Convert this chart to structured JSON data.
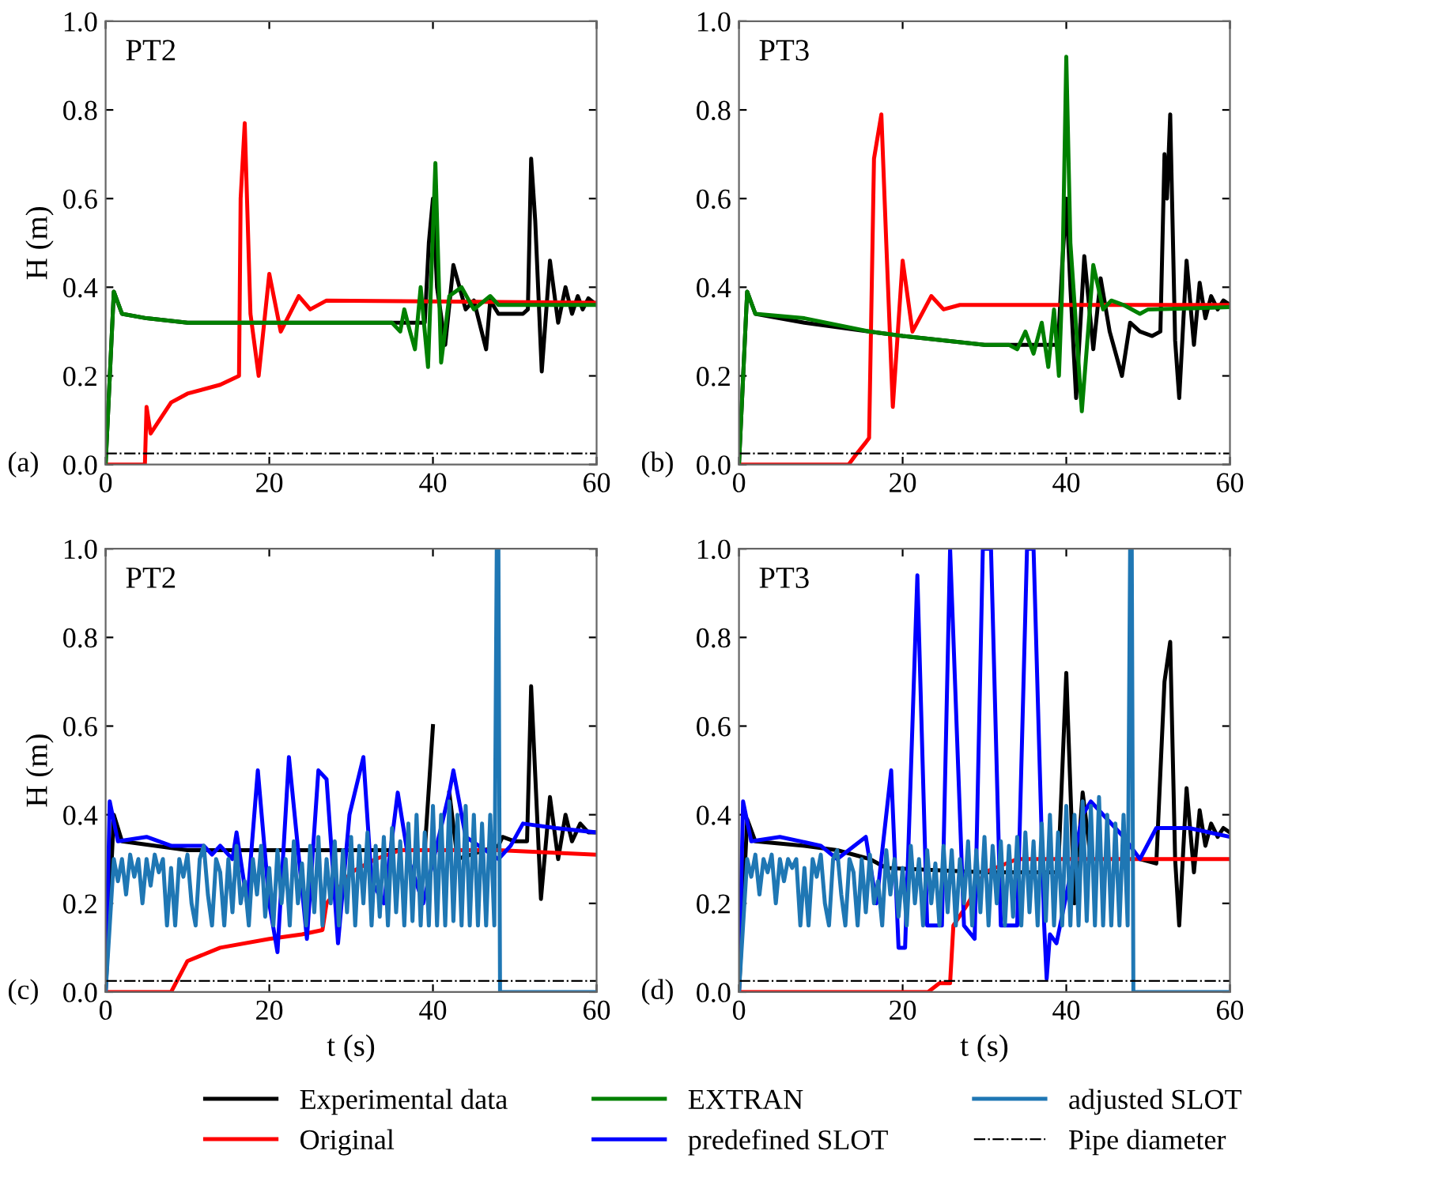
{
  "chart_data": [
    {
      "type": "line",
      "title": "PT2",
      "ylabel": "H (m)",
      "annotations": [
        "(a)"
      ],
      "xlim": [
        0,
        60
      ],
      "xticks": [
        0,
        20,
        40,
        60
      ],
      "ylim": [
        0,
        1
      ],
      "yticks": [
        {
          "value": 0,
          "label": "0.0"
        },
        {
          "value": 0.2,
          "label": "0.2"
        },
        {
          "value": 0.4,
          "label": "0.4"
        },
        {
          "value": 0.6,
          "label": "0.6"
        },
        {
          "value": 0.8,
          "label": "0.8"
        },
        {
          "value": 1,
          "label": "1.0"
        }
      ],
      "grid": false,
      "legend": "bottom",
      "line_style": "solid",
      "marker": "none",
      "ref_lines": [
        {
          "axis": "y",
          "value": 0.025,
          "label": "Pipe diameter",
          "color": "#000000",
          "line_style": "dashdot"
        }
      ],
      "series": [
        {
          "name": "Experimental data",
          "color": "#000000",
          "x": [
            0,
            1,
            2,
            5,
            10,
            20,
            30,
            39,
            39.5,
            40,
            40.5,
            41.5,
            42.5,
            44,
            45,
            46.5,
            47,
            48,
            51,
            51.6,
            52,
            52.5,
            53.3,
            54.3,
            55.3,
            56.2,
            57,
            57.7,
            58.3,
            59,
            60
          ],
          "values": [
            0,
            0.39,
            0.34,
            0.33,
            0.32,
            0.32,
            0.32,
            0.32,
            0.5,
            0.6,
            0.4,
            0.27,
            0.45,
            0.35,
            0.37,
            0.26,
            0.37,
            0.34,
            0.34,
            0.35,
            0.69,
            0.55,
            0.21,
            0.46,
            0.32,
            0.4,
            0.34,
            0.38,
            0.35,
            0.375,
            0.36
          ]
        },
        {
          "name": "Original",
          "color": "#ff0000",
          "x": [
            0,
            4.8,
            5,
            5.5,
            8,
            10,
            14,
            16.3,
            16.5,
            17,
            17.7,
            18.7,
            20,
            21.4,
            23.6,
            25,
            27,
            60
          ],
          "values": [
            0,
            0,
            0.13,
            0.07,
            0.14,
            0.16,
            0.18,
            0.2,
            0.6,
            0.77,
            0.34,
            0.2,
            0.43,
            0.3,
            0.38,
            0.35,
            0.37,
            0.365
          ]
        },
        {
          "name": "EXTRAN",
          "color": "#008000",
          "x": [
            0,
            1,
            2,
            5,
            10,
            20,
            30,
            35,
            36,
            36.5,
            37.2,
            37.8,
            38.5,
            39.4,
            40.3,
            41,
            42,
            43.5,
            45,
            47,
            48,
            60
          ],
          "values": [
            0,
            0.39,
            0.34,
            0.33,
            0.32,
            0.32,
            0.32,
            0.32,
            0.3,
            0.35,
            0.3,
            0.26,
            0.4,
            0.22,
            0.68,
            0.23,
            0.38,
            0.4,
            0.35,
            0.38,
            0.36,
            0.36
          ]
        }
      ]
    },
    {
      "type": "line",
      "title": "PT3",
      "annotations": [
        "(b)"
      ],
      "xlim": [
        0,
        60
      ],
      "xticks": [
        0,
        20,
        40,
        60
      ],
      "ylim": [
        0,
        1
      ],
      "yticks": [
        {
          "value": 0,
          "label": "0.0"
        },
        {
          "value": 0.2,
          "label": "0.2"
        },
        {
          "value": 0.4,
          "label": "0.4"
        },
        {
          "value": 0.6,
          "label": "0.6"
        },
        {
          "value": 0.8,
          "label": "0.8"
        },
        {
          "value": 1,
          "label": "1.0"
        }
      ],
      "grid": false,
      "legend": "bottom",
      "line_style": "solid",
      "marker": "none",
      "ref_lines": [
        {
          "axis": "y",
          "value": 0.025,
          "color": "#000000",
          "line_style": "dashdot"
        }
      ],
      "series": [
        {
          "name": "Experimental data",
          "color": "#000000",
          "x": [
            0,
            1,
            2,
            8,
            16,
            20,
            30,
            39,
            39.5,
            40,
            40.5,
            41.2,
            42.2,
            43.3,
            44.2,
            45.3,
            46.8,
            47.8,
            49,
            50.5,
            51.5,
            52,
            52.3,
            52.7,
            53.3,
            53.8,
            54.7,
            55.6,
            56.3,
            57,
            57.7,
            58.5,
            59.2,
            60
          ],
          "values": [
            0,
            0.39,
            0.34,
            0.32,
            0.3,
            0.29,
            0.27,
            0.27,
            0.45,
            0.6,
            0.4,
            0.15,
            0.47,
            0.26,
            0.42,
            0.3,
            0.2,
            0.32,
            0.3,
            0.29,
            0.3,
            0.7,
            0.6,
            0.79,
            0.28,
            0.15,
            0.46,
            0.27,
            0.41,
            0.33,
            0.38,
            0.35,
            0.37,
            0.36
          ]
        },
        {
          "name": "Original",
          "color": "#ff0000",
          "x": [
            0,
            13.4,
            14.2,
            15.5,
            15.9,
            16.5,
            17.4,
            18,
            18.8,
            20,
            21.2,
            23.5,
            25,
            27,
            60
          ],
          "values": [
            0,
            0,
            0.02,
            0.05,
            0.06,
            0.69,
            0.79,
            0.5,
            0.13,
            0.46,
            0.3,
            0.38,
            0.35,
            0.36,
            0.36
          ]
        },
        {
          "name": "EXTRAN",
          "color": "#008000",
          "x": [
            0,
            1,
            2,
            8,
            16,
            20,
            30,
            33,
            34,
            35,
            36,
            37,
            37.8,
            38.5,
            39.1,
            39.5,
            40,
            40.5,
            41.9,
            43.3,
            44.5,
            45.5,
            47,
            49,
            50,
            60
          ],
          "values": [
            0,
            0.39,
            0.34,
            0.33,
            0.3,
            0.29,
            0.27,
            0.27,
            0.26,
            0.3,
            0.25,
            0.32,
            0.22,
            0.35,
            0.2,
            0.4,
            0.92,
            0.5,
            0.12,
            0.45,
            0.35,
            0.37,
            0.36,
            0.34,
            0.35,
            0.355
          ]
        }
      ]
    },
    {
      "type": "line",
      "title": "PT2",
      "xlabel": "t (s)",
      "ylabel": "H (m)",
      "annotations": [
        "(c)"
      ],
      "xlim": [
        0,
        60
      ],
      "xticks": [
        0,
        20,
        40,
        60
      ],
      "ylim": [
        0,
        1
      ],
      "yticks": [
        {
          "value": 0,
          "label": "0.0"
        },
        {
          "value": 0.2,
          "label": "0.2"
        },
        {
          "value": 0.4,
          "label": "0.4"
        },
        {
          "value": 0.6,
          "label": "0.6"
        },
        {
          "value": 0.8,
          "label": "0.8"
        },
        {
          "value": 1,
          "label": "1.0"
        }
      ],
      "grid": false,
      "legend": "bottom",
      "line_style": "solid",
      "marker": "none",
      "ref_lines": [
        {
          "axis": "y",
          "value": 0.025,
          "color": "#000000",
          "line_style": "dashdot"
        }
      ],
      "series": [
        {
          "name": "Experimental data",
          "color": "#000000",
          "x": [
            0,
            1,
            2,
            10,
            20,
            30,
            39,
            40,
            41,
            42,
            43,
            48,
            48.5,
            50,
            51.5,
            52,
            53.2,
            54.3,
            55.3,
            56.2,
            57,
            58,
            59,
            60
          ],
          "values": [
            0,
            0.4,
            0.34,
            0.32,
            0.32,
            0.32,
            0.32,
            0.6,
            null,
            0.45,
            0.3,
            0.33,
            0.35,
            0.34,
            0.34,
            0.69,
            0.21,
            0.44,
            0.3,
            0.4,
            0.34,
            0.38,
            0.36,
            0.36
          ]
        },
        {
          "name": "Original",
          "color": "#ff0000",
          "x": [
            0,
            8,
            10,
            14,
            20,
            24,
            26.5,
            27,
            30,
            33,
            36,
            48,
            60
          ],
          "values": [
            0,
            0,
            0.07,
            0.1,
            0.12,
            0.13,
            0.14,
            0.2,
            0.27,
            0.3,
            0.32,
            0.32,
            0.31
          ]
        },
        {
          "name": "predefined SLOT",
          "color": "#0000ff",
          "x": [
            0,
            0.5,
            1.5,
            5,
            8,
            12,
            13,
            14,
            15.5,
            16,
            17.3,
            18.6,
            20,
            21,
            22.4,
            24.6,
            26,
            27,
            28.4,
            29.8,
            31.5,
            32.5,
            34,
            35.7,
            37,
            38.8,
            42,
            42.5,
            44,
            48,
            49.5,
            51,
            55,
            60
          ],
          "values": [
            0,
            0.43,
            0.34,
            0.35,
            0.33,
            0.33,
            0.31,
            0.33,
            0.3,
            0.36,
            0.2,
            0.5,
            0.2,
            0.09,
            0.53,
            0.12,
            0.5,
            0.48,
            0.11,
            0.4,
            0.53,
            0.25,
            0.2,
            0.45,
            0.3,
            0.2,
            0.45,
            0.5,
            0.35,
            0.3,
            0.33,
            0.38,
            0.37,
            0.36
          ]
        },
        {
          "name": "adjusted SLOT",
          "color": "#1f77b4",
          "x": [
            0,
            0.5,
            1,
            1.5,
            2,
            2.5,
            3,
            3.5,
            4,
            4.5,
            5,
            5.5,
            6,
            6.5,
            7,
            7.5,
            8,
            8.5,
            9,
            9.5,
            10,
            10.5,
            11,
            11.5,
            12,
            12.5,
            13,
            13.5,
            14,
            14.5,
            15,
            15.5,
            16,
            16.5,
            17,
            17.5,
            18,
            18.5,
            19,
            19.5,
            20,
            20.5,
            21,
            21.5,
            22,
            22.5,
            23,
            23.5,
            24,
            24.5,
            25,
            25.5,
            26,
            26.5,
            27,
            27.5,
            28,
            28.5,
            29,
            29.5,
            30,
            30.5,
            31,
            31.5,
            32,
            32.5,
            33,
            33.5,
            34,
            34.5,
            35,
            35.5,
            36,
            36.5,
            37,
            37.5,
            38,
            38.5,
            39,
            39.5,
            40,
            40.5,
            41,
            41.5,
            42,
            42.5,
            43,
            43.5,
            44,
            44.5,
            45,
            45.5,
            46,
            46.5,
            47,
            47.5,
            47.8,
            48,
            48.2,
            60
          ],
          "values": [
            0,
            0.15,
            0.3,
            0.25,
            0.3,
            0.22,
            0.31,
            0.26,
            0.3,
            0.2,
            0.3,
            0.24,
            0.31,
            0.27,
            0.3,
            0.15,
            0.28,
            0.15,
            0.3,
            0.26,
            0.31,
            0.2,
            0.15,
            0.3,
            0.33,
            0.22,
            0.15,
            0.3,
            0.27,
            0.15,
            0.3,
            0.18,
            0.33,
            0.2,
            0.25,
            0.15,
            0.3,
            0.22,
            0.33,
            0.17,
            0.28,
            0.15,
            0.32,
            0.2,
            0.3,
            0.15,
            0.34,
            0.2,
            0.29,
            0.15,
            0.33,
            0.18,
            0.35,
            0.15,
            0.3,
            0.2,
            0.34,
            0.15,
            0.32,
            0.18,
            0.35,
            0.15,
            0.33,
            0.2,
            0.36,
            0.15,
            0.33,
            0.17,
            0.35,
            0.15,
            0.37,
            0.18,
            0.34,
            0.15,
            0.38,
            0.16,
            0.4,
            0.15,
            0.36,
            0.15,
            0.42,
            0.15,
            0.4,
            0.15,
            0.43,
            0.16,
            0.4,
            0.15,
            0.42,
            0.15,
            0.4,
            0.15,
            0.38,
            0.15,
            0.4,
            0.15,
            1.0,
            1.0,
            0,
            0
          ]
        }
      ]
    },
    {
      "type": "line",
      "title": "PT3",
      "xlabel": "t (s)",
      "annotations": [
        "(d)"
      ],
      "xlim": [
        0,
        60
      ],
      "xticks": [
        0,
        20,
        40,
        60
      ],
      "ylim": [
        0,
        1
      ],
      "yticks": [
        {
          "value": 0,
          "label": "0.0"
        },
        {
          "value": 0.2,
          "label": "0.2"
        },
        {
          "value": 0.4,
          "label": "0.4"
        },
        {
          "value": 0.6,
          "label": "0.6"
        },
        {
          "value": 0.8,
          "label": "0.8"
        },
        {
          "value": 1,
          "label": "1.0"
        }
      ],
      "grid": false,
      "legend": "bottom",
      "line_style": "solid",
      "marker": "none",
      "ref_lines": [
        {
          "axis": "y",
          "value": 0.025,
          "color": "#000000",
          "line_style": "dashdot"
        }
      ],
      "series": [
        {
          "name": "Experimental data",
          "color": "#000000",
          "x": [
            0,
            1,
            2,
            8,
            12,
            16,
            18,
            30,
            39,
            40,
            41,
            42,
            43,
            48,
            49,
            51,
            52,
            52.7,
            53.3,
            53.8,
            54.7,
            55.6,
            56.3,
            57,
            57.7,
            58.5,
            59.2,
            60
          ],
          "values": [
            0,
            0.39,
            0.34,
            0.33,
            0.32,
            0.3,
            0.28,
            0.27,
            0.27,
            0.72,
            0.2,
            0.45,
            0.3,
            null,
            0.3,
            0.29,
            0.7,
            0.79,
            0.3,
            0.15,
            0.46,
            0.27,
            0.41,
            0.33,
            0.38,
            0.35,
            0.37,
            0.36
          ]
        },
        {
          "name": "Original",
          "color": "#ff0000",
          "x": [
            0,
            23.1,
            24.5,
            25.8,
            26.2,
            28,
            30,
            34,
            60
          ],
          "values": [
            0,
            0,
            0.02,
            0.02,
            0.15,
            0.2,
            0.27,
            0.3,
            0.3
          ]
        },
        {
          "name": "predefined SLOT",
          "color": "#0000ff",
          "x": [
            0,
            0.5,
            1.5,
            5,
            10,
            12,
            15.5,
            16.8,
            18.6,
            19.5,
            20.3,
            21.8,
            23,
            24.8,
            25.8,
            27.5,
            28.8,
            29.8,
            30.8,
            32,
            34,
            35.2,
            36,
            37.3,
            37.6,
            38,
            38.8,
            42,
            43,
            47,
            49,
            51,
            55,
            60
          ],
          "values": [
            0,
            0.43,
            0.34,
            0.35,
            0.33,
            0.3,
            0.35,
            0.2,
            0.5,
            0.1,
            0.1,
            0.94,
            0.15,
            0.15,
            1.0,
            0.15,
            0.12,
            1.0,
            1.0,
            0.15,
            0.15,
            1.0,
            1.0,
            0.15,
            0.03,
            0.13,
            0.11,
            0.4,
            0.43,
            0.35,
            0.3,
            0.37,
            0.37,
            0.35
          ]
        },
        {
          "name": "adjusted SLOT",
          "color": "#1f77b4",
          "x": [
            0,
            0.5,
            1,
            1.5,
            2,
            2.5,
            3,
            3.5,
            4,
            4.5,
            5,
            5.5,
            6,
            6.5,
            7,
            7.5,
            8,
            8.5,
            9,
            9.5,
            10,
            10.5,
            11,
            11.5,
            12,
            12.5,
            13,
            13.5,
            14,
            14.5,
            15,
            15.5,
            16,
            16.5,
            17,
            17.5,
            18,
            18.5,
            19,
            19.5,
            20,
            20.5,
            21,
            21.5,
            22,
            22.5,
            23,
            23.5,
            24,
            24.5,
            25,
            25.5,
            26,
            26.5,
            27,
            27.5,
            28,
            28.5,
            29,
            29.5,
            30,
            30.5,
            31,
            31.5,
            32,
            32.5,
            33,
            33.5,
            34,
            34.5,
            35,
            35.5,
            36,
            36.5,
            37,
            37.5,
            38,
            38.5,
            39,
            39.5,
            40,
            40.5,
            41,
            41.5,
            42,
            42.5,
            43,
            43.5,
            44,
            44.5,
            45,
            45.5,
            46,
            46.5,
            47,
            47.5,
            47.8,
            48,
            48.2,
            60
          ],
          "values": [
            0,
            0.15,
            0.3,
            0.26,
            0.31,
            0.22,
            0.3,
            0.27,
            0.31,
            0.2,
            0.3,
            0.25,
            0.3,
            0.28,
            0.3,
            0.15,
            0.28,
            0.15,
            0.3,
            0.26,
            0.31,
            0.2,
            0.15,
            0.3,
            0.32,
            0.22,
            0.15,
            0.3,
            0.27,
            0.15,
            0.3,
            0.18,
            0.31,
            0.2,
            0.25,
            0.15,
            0.32,
            0.22,
            0.3,
            0.17,
            0.28,
            0.15,
            0.33,
            0.2,
            0.3,
            0.15,
            0.32,
            0.2,
            0.29,
            0.15,
            0.33,
            0.18,
            0.32,
            0.15,
            0.3,
            0.2,
            0.34,
            0.15,
            0.32,
            0.18,
            0.35,
            0.15,
            0.33,
            0.2,
            0.34,
            0.15,
            0.33,
            0.17,
            0.35,
            0.15,
            0.36,
            0.18,
            0.34,
            0.15,
            0.38,
            0.16,
            0.4,
            0.15,
            0.36,
            0.15,
            0.42,
            0.15,
            0.4,
            0.15,
            0.43,
            0.16,
            0.42,
            0.15,
            0.44,
            0.15,
            0.4,
            0.15,
            0.38,
            0.15,
            0.4,
            0.15,
            1.0,
            1.0,
            0,
            0
          ]
        }
      ]
    }
  ]
}
